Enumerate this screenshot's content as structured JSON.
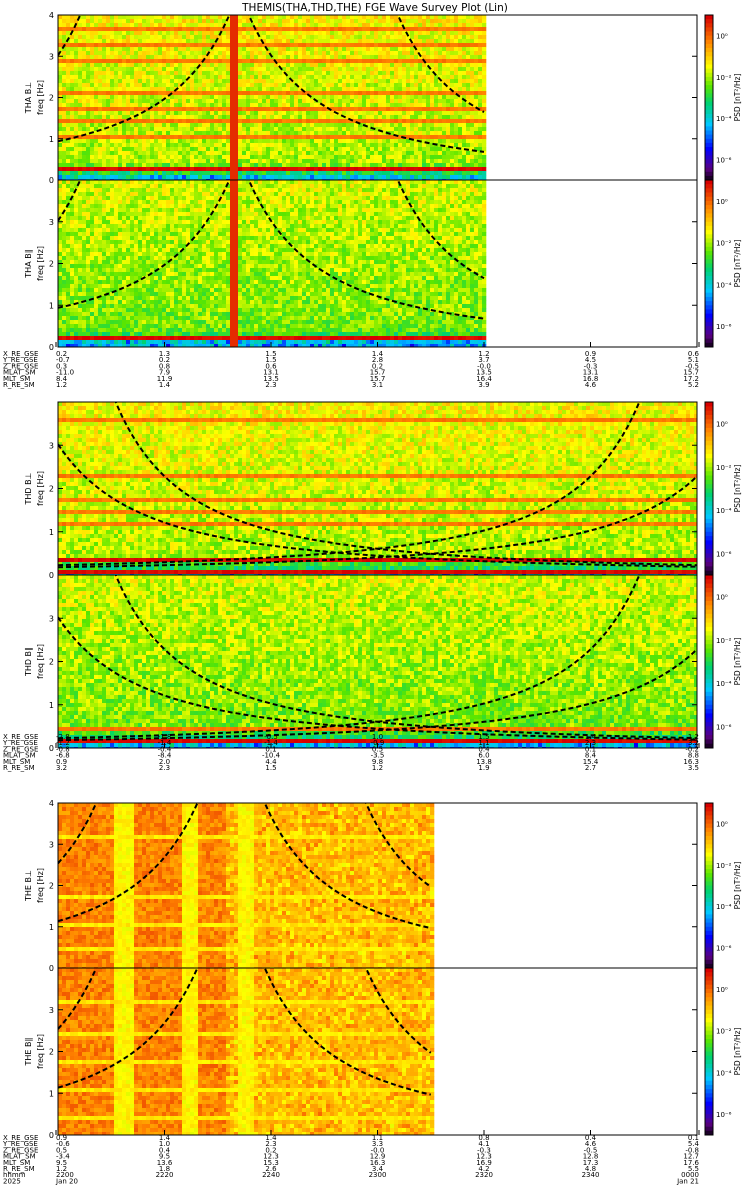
{
  "title": "THEMIS(THA,THD,THE) FGE Wave Survey Plot (Lin)",
  "colorbar": {
    "label": "PSD [nT²/Hz]",
    "tick_labels": [
      "10⁰",
      "10⁻²",
      "10⁻⁴",
      "10⁻⁶"
    ],
    "tick_values": [
      0,
      -2,
      -4,
      -6
    ],
    "log_range": [
      -7,
      1
    ]
  },
  "colors": {
    "text": "#000000",
    "frame": "#000000",
    "background": "#ffffff",
    "gyro_curve": "#000000"
  },
  "chart_data": [
    {
      "type": "heatmap",
      "probe": "THA",
      "panels": [
        {
          "ylabel_top": "THA B⊥",
          "ylabel": "freq [Hz]",
          "y_range": [
            0,
            4
          ],
          "y_ticks": [
            0,
            1,
            2,
            3,
            4
          ],
          "line_freqs": [
            0.3,
            1.1,
            1.45,
            1.8,
            2.2,
            2.5,
            2.9,
            3.3,
            3.7
          ],
          "broadband_time": "22:33"
        },
        {
          "ylabel_top": "THA B∥",
          "ylabel": "freq [Hz]",
          "y_range": [
            0,
            4
          ],
          "y_ticks": [
            0,
            1,
            2,
            3
          ],
          "line_freqs": [
            0.3,
            0.6
          ],
          "broadband_time": "22:33"
        }
      ],
      "data_time_range": [
        "22:00",
        "23:20"
      ],
      "ephemeris": {
        "labels": [
          "X_RE_GSE",
          "Y_RE_GSE",
          "Z_RE_GSE",
          "MLAT_SM",
          "MLT_SM",
          "R_RE_SM"
        ],
        "columns": [
          [
            "0.2",
            "-0.7",
            "0.3",
            "-11.0",
            "8.4",
            "1.2"
          ],
          [
            "1.3",
            "0.2",
            "0.8",
            "7.9",
            "11.9",
            "1.4"
          ],
          [
            "1.5",
            "1.5",
            "0.6",
            "13.1",
            "13.5",
            "2.3"
          ],
          [
            "1.4",
            "2.8",
            "0.2",
            "15.7",
            "15.7",
            "3.1"
          ],
          [
            "1.2",
            "3.7",
            "-0.0",
            "13.5",
            "16.4",
            "3.9"
          ],
          [
            "0.9",
            "4.5",
            "-0.3",
            "13.1",
            "16.8",
            "4.6"
          ],
          [
            "0.6",
            "5.1",
            "-0.5",
            "15.7",
            "17.2",
            "5.2"
          ]
        ]
      }
    },
    {
      "type": "heatmap",
      "probe": "THD",
      "panels": [
        {
          "ylabel_top": "THD B⊥",
          "ylabel": "freq [Hz]",
          "y_range": [
            0,
            4
          ],
          "y_ticks": [
            0,
            1,
            2,
            3
          ],
          "line_freqs": [
            0.15,
            0.4,
            1.2,
            1.5,
            1.8,
            2.3,
            3.6
          ],
          "broadband_time": ""
        },
        {
          "ylabel_top": "THD B∥",
          "ylabel": "freq [Hz]",
          "y_range": [
            0,
            4
          ],
          "y_ticks": [
            0,
            1,
            2,
            3
          ],
          "line_freqs": [
            0.2,
            0.5
          ],
          "broadband_time": ""
        }
      ],
      "data_time_range": [
        "22:00",
        "24:00"
      ],
      "ephemeris": {
        "labels": [
          "X_RE_GSE",
          "Y_RE_GSE",
          "Z_RE_GSE",
          "MLAT_SM",
          "MLT_SM",
          "R_RE_SM"
        ],
        "columns": [
          [
            "-2.8",
            "-1.2",
            "-0.8",
            "-6.8",
            "0.9",
            "3.2"
          ],
          [
            "-1.8",
            "-1.4",
            "-0.4",
            "-8.4",
            "2.0",
            "2.3"
          ],
          [
            "-0.5",
            "-1.4",
            "0.1",
            "-10.4",
            "4.4",
            "1.5"
          ],
          [
            "1.0",
            "-0.9",
            "0.5",
            "-3.5",
            "9.8",
            "1.2"
          ],
          [
            "1.5",
            "1.1",
            "0.4",
            "6.0",
            "13.8",
            "1.9"
          ],
          [
            "1.4",
            "2.3",
            "0.1",
            "8.4",
            "15.4",
            "2.7"
          ],
          [
            "1.2",
            "3.2",
            "-0.2",
            "8.8",
            "16.3",
            "3.5"
          ]
        ]
      }
    },
    {
      "type": "heatmap",
      "probe": "THE",
      "panels": [
        {
          "ylabel_top": "THE B⊥",
          "ylabel": "freq [Hz]",
          "y_range": [
            0,
            4
          ],
          "y_ticks": [
            0,
            1,
            2,
            3,
            4
          ],
          "line_freqs": [
            0.5,
            1.1,
            1.8,
            2.5,
            3.2
          ],
          "broadband_time": ""
        },
        {
          "ylabel_top": "THE B∥",
          "ylabel": "freq [Hz]",
          "y_range": [
            0,
            4
          ],
          "y_ticks": [
            0,
            1,
            2,
            3
          ],
          "line_freqs": [
            0.5,
            1.1,
            1.8,
            2.5,
            3.2
          ],
          "broadband_time": ""
        }
      ],
      "data_time_range": [
        "22:00",
        "23:10"
      ],
      "ephemeris": {
        "labels": [
          "X_RE_GSE",
          "Y_RE_GSE",
          "Z_RE_GSE",
          "MLAT_SM",
          "MLT_SM",
          "R_RE_SM",
          "hhmm",
          "2025"
        ],
        "columns": [
          [
            "0.9",
            "-0.6",
            "0.5",
            "-3.4",
            "9.5",
            "1.2",
            "2200",
            "Jan 20"
          ],
          [
            "1.4",
            "1.0",
            "0.4",
            "9.5",
            "13.6",
            "1.8",
            "2220",
            ""
          ],
          [
            "1.4",
            "2.3",
            "0.2",
            "12.3",
            "15.3",
            "2.6",
            "2240",
            ""
          ],
          [
            "1.1",
            "3.3",
            "-0.0",
            "12.9",
            "16.3",
            "3.4",
            "2300",
            ""
          ],
          [
            "0.8",
            "4.1",
            "-0.3",
            "12.3",
            "16.9",
            "4.2",
            "2320",
            ""
          ],
          [
            "0.4",
            "4.6",
            "-0.5",
            "12.8",
            "17.3",
            "4.8",
            "2340",
            ""
          ],
          [
            "0.1",
            "5.4",
            "-0.8",
            "12.7",
            "17.6",
            "5.5",
            "0000",
            "Jan 21"
          ]
        ]
      }
    }
  ]
}
